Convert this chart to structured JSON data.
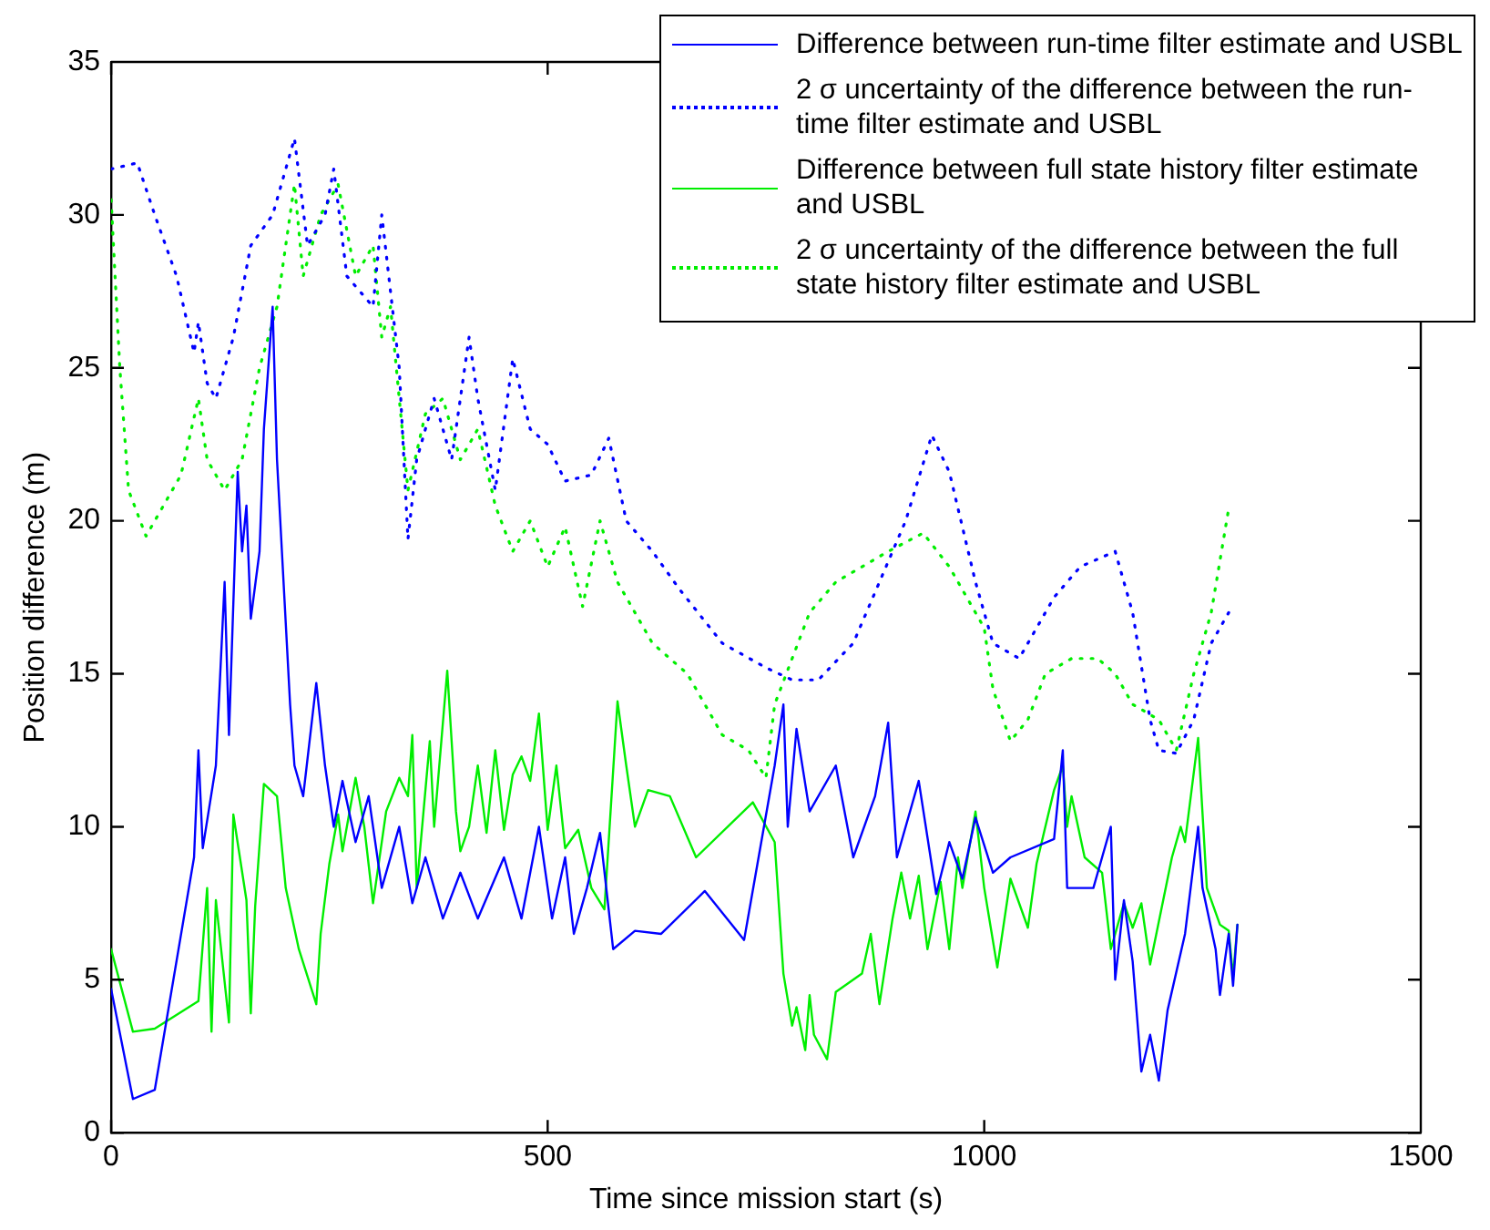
{
  "chart_data": {
    "type": "line",
    "xlabel": "Time since mission start (s)",
    "ylabel": "Position difference (m)",
    "xlim": [
      0,
      1500
    ],
    "xticks": [
      0,
      500,
      1000,
      1500
    ],
    "ylim": [
      0,
      35
    ],
    "yticks": [
      0,
      5,
      10,
      15,
      20,
      25,
      30,
      35
    ],
    "grid": false,
    "legend": "top right",
    "marker": "none",
    "series": [
      {
        "name": "Difference between run-time filter estimate and USBL",
        "color": "#0000ff",
        "line_style": "solid",
        "x": [
          0,
          25,
          50,
          95,
          100,
          105,
          120,
          130,
          135,
          145,
          150,
          155,
          160,
          170,
          175,
          185,
          190,
          205,
          210,
          220,
          235,
          245,
          255,
          265,
          280,
          295,
          310,
          330,
          345,
          360,
          380,
          400,
          420,
          450,
          470,
          490,
          505,
          520,
          530,
          545,
          560,
          575,
          600,
          630,
          680,
          725,
          760,
          770,
          775,
          785,
          800,
          830,
          850,
          875,
          890,
          900,
          925,
          945,
          960,
          975,
          990,
          1010,
          1030,
          1080,
          1090,
          1095,
          1125,
          1135,
          1145,
          1150,
          1160,
          1170,
          1180,
          1190,
          1200,
          1210,
          1230,
          1245,
          1250,
          1265,
          1270,
          1280,
          1285,
          1290
        ],
        "values": [
          4.7,
          1.1,
          1.4,
          9,
          12.5,
          9.3,
          12,
          18,
          13,
          21.6,
          19,
          20.5,
          16.8,
          19,
          23,
          27,
          22,
          14,
          12,
          11,
          14.7,
          12,
          10,
          11.5,
          9.5,
          11,
          8,
          10,
          7.5,
          9,
          7,
          8.5,
          7,
          9,
          7,
          10,
          7,
          9,
          6.5,
          8,
          9.8,
          6,
          6.6,
          6.5,
          7.9,
          6.3,
          12,
          14,
          10,
          13.2,
          10.5,
          12,
          9,
          11,
          13.4,
          9,
          11.5,
          7.8,
          9.5,
          8.3,
          10.3,
          8.5,
          9,
          9.6,
          12.5,
          8,
          8,
          9,
          10,
          5,
          7.6,
          5.6,
          2,
          3.2,
          1.7,
          4,
          6.5,
          10,
          8,
          6,
          4.5,
          6.5,
          4.8,
          6.8
        ]
      },
      {
        "name": "2 σ uncertainty of the difference between the run-time filter estimate and USBL",
        "color": "#0000ff",
        "line_style": "dotted",
        "x": [
          0,
          30,
          50,
          75,
          95,
          100,
          110,
          120,
          130,
          140,
          160,
          185,
          200,
          210,
          225,
          245,
          255,
          270,
          300,
          310,
          330,
          340,
          350,
          370,
          390,
          410,
          420,
          440,
          460,
          480,
          500,
          520,
          550,
          570,
          590,
          620,
          650,
          700,
          750,
          780,
          810,
          850,
          880,
          910,
          940,
          960,
          990,
          1010,
          1040,
          1080,
          1110,
          1150,
          1170,
          1190,
          1200,
          1220,
          1240,
          1260,
          1280
        ],
        "values": [
          31.5,
          31.7,
          30,
          28,
          25.5,
          26.5,
          24.5,
          24,
          25,
          26,
          29,
          30,
          31.5,
          32.5,
          29,
          30,
          31.5,
          28,
          27,
          30,
          25,
          19.4,
          22,
          24,
          22,
          26,
          24,
          21,
          25.3,
          23,
          22.5,
          21.3,
          21.5,
          22.7,
          20,
          19,
          17.8,
          16,
          15.2,
          14.8,
          14.8,
          16,
          18,
          20,
          22.8,
          21.6,
          18,
          16,
          15.5,
          17.5,
          18.5,
          19,
          17,
          13.5,
          12.5,
          12.4,
          13.5,
          16,
          17
        ]
      },
      {
        "name": "Difference between full state history filter estimate and USBL",
        "color": "#00ee00",
        "line_style": "solid",
        "x": [
          0,
          25,
          50,
          100,
          110,
          115,
          120,
          135,
          140,
          155,
          160,
          165,
          175,
          190,
          200,
          215,
          235,
          240,
          250,
          260,
          265,
          280,
          290,
          300,
          315,
          330,
          340,
          345,
          350,
          365,
          370,
          385,
          395,
          400,
          410,
          420,
          430,
          440,
          450,
          460,
          470,
          480,
          490,
          500,
          510,
          520,
          535,
          550,
          565,
          580,
          590,
          600,
          615,
          640,
          670,
          735,
          760,
          770,
          780,
          785,
          795,
          800,
          805,
          820,
          830,
          860,
          870,
          880,
          895,
          905,
          915,
          925,
          935,
          950,
          960,
          970,
          975,
          990,
          1000,
          1015,
          1030,
          1050,
          1060,
          1080,
          1090,
          1095,
          1100,
          1115,
          1135,
          1145,
          1160,
          1170,
          1180,
          1190,
          1215,
          1225,
          1230,
          1245,
          1255,
          1270,
          1280,
          1285,
          1290
        ],
        "values": [
          6,
          3.3,
          3.4,
          4.3,
          8,
          3.3,
          7.6,
          3.6,
          10.4,
          7.6,
          3.9,
          7.4,
          11.4,
          11,
          8,
          6,
          4.2,
          6.5,
          8.8,
          10.4,
          9.2,
          11.6,
          10,
          7.5,
          10.5,
          11.6,
          11,
          13,
          8,
          12.8,
          10,
          15.1,
          10.5,
          9.2,
          10,
          12,
          9.8,
          12.5,
          9.9,
          11.7,
          12.3,
          11.5,
          13.7,
          9.9,
          12,
          9.3,
          9.9,
          8,
          7.3,
          14.1,
          12,
          10,
          11.2,
          11,
          9,
          10.8,
          9.5,
          5.2,
          3.5,
          4.1,
          2.7,
          4.5,
          3.2,
          2.4,
          4.6,
          5.2,
          6.5,
          4.2,
          7,
          8.5,
          7,
          8.4,
          6,
          8.2,
          6,
          9,
          8,
          10.5,
          8,
          5.4,
          8.3,
          6.7,
          8.8,
          11.2,
          12,
          10,
          11,
          9,
          8.5,
          6,
          7.5,
          6.7,
          7.5,
          5.5,
          9,
          10,
          9.5,
          12.9,
          8,
          6.8,
          6.6,
          5.1,
          6.8
        ]
      },
      {
        "name": "2 σ uncertainty of the difference between the full state history filter estimate and USBL",
        "color": "#00ee00",
        "line_style": "dotted",
        "x": [
          0,
          10,
          20,
          40,
          60,
          80,
          100,
          110,
          130,
          150,
          170,
          190,
          210,
          220,
          240,
          260,
          280,
          300,
          310,
          320,
          340,
          360,
          380,
          400,
          420,
          440,
          460,
          480,
          500,
          520,
          540,
          560,
          580,
          600,
          620,
          660,
          700,
          730,
          750,
          760,
          780,
          800,
          830,
          860,
          890,
          930,
          960,
          1000,
          1010,
          1030,
          1050,
          1070,
          1100,
          1130,
          1150,
          1170,
          1200,
          1220,
          1240,
          1260,
          1280
        ],
        "values": [
          30.5,
          25,
          21,
          19.5,
          20.5,
          21.5,
          24,
          22,
          21,
          22,
          25,
          27,
          31,
          28,
          30,
          31,
          28,
          29,
          26,
          27,
          21,
          23.5,
          24,
          22,
          23,
          20.5,
          19,
          20,
          18.5,
          19.8,
          17.2,
          20,
          18,
          17,
          16,
          15,
          13,
          12.5,
          11.6,
          14,
          15.5,
          17,
          18,
          18.5,
          19,
          19.6,
          18.5,
          16.5,
          14.5,
          12.8,
          13.5,
          15,
          15.5,
          15.5,
          15,
          14,
          13.5,
          12.5,
          15,
          17,
          20.4
        ]
      }
    ]
  }
}
